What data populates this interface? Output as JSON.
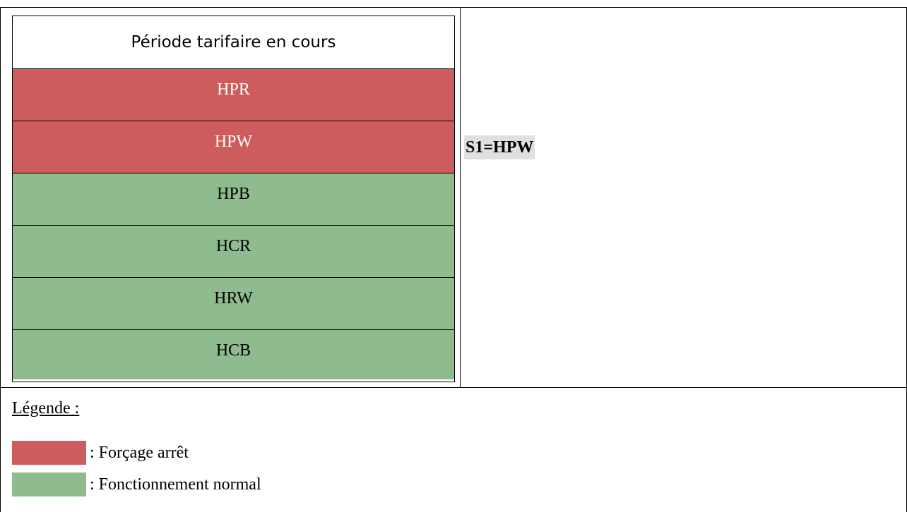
{
  "table": {
    "header": "Période tarifaire en cours",
    "rows": [
      {
        "label": "HPR",
        "color": "#cd5c5c"
      },
      {
        "label": "HPW",
        "color": "#cd5c5c"
      },
      {
        "label": "HPB",
        "color": "#8fbc8f"
      },
      {
        "label": "HCR",
        "color": "#8fbc8f"
      },
      {
        "label": "HRW",
        "color": "#8fbc8f"
      },
      {
        "label": "HCB",
        "color": "#8fbc8f"
      }
    ]
  },
  "status": "S1=HPW",
  "legend": {
    "title": "Légende :",
    "items": [
      {
        "label": ": Forçage arrêt",
        "color": "#cd5c5c"
      },
      {
        "label": ": Fonctionnement normal",
        "color": "#8fbc8f"
      }
    ]
  }
}
